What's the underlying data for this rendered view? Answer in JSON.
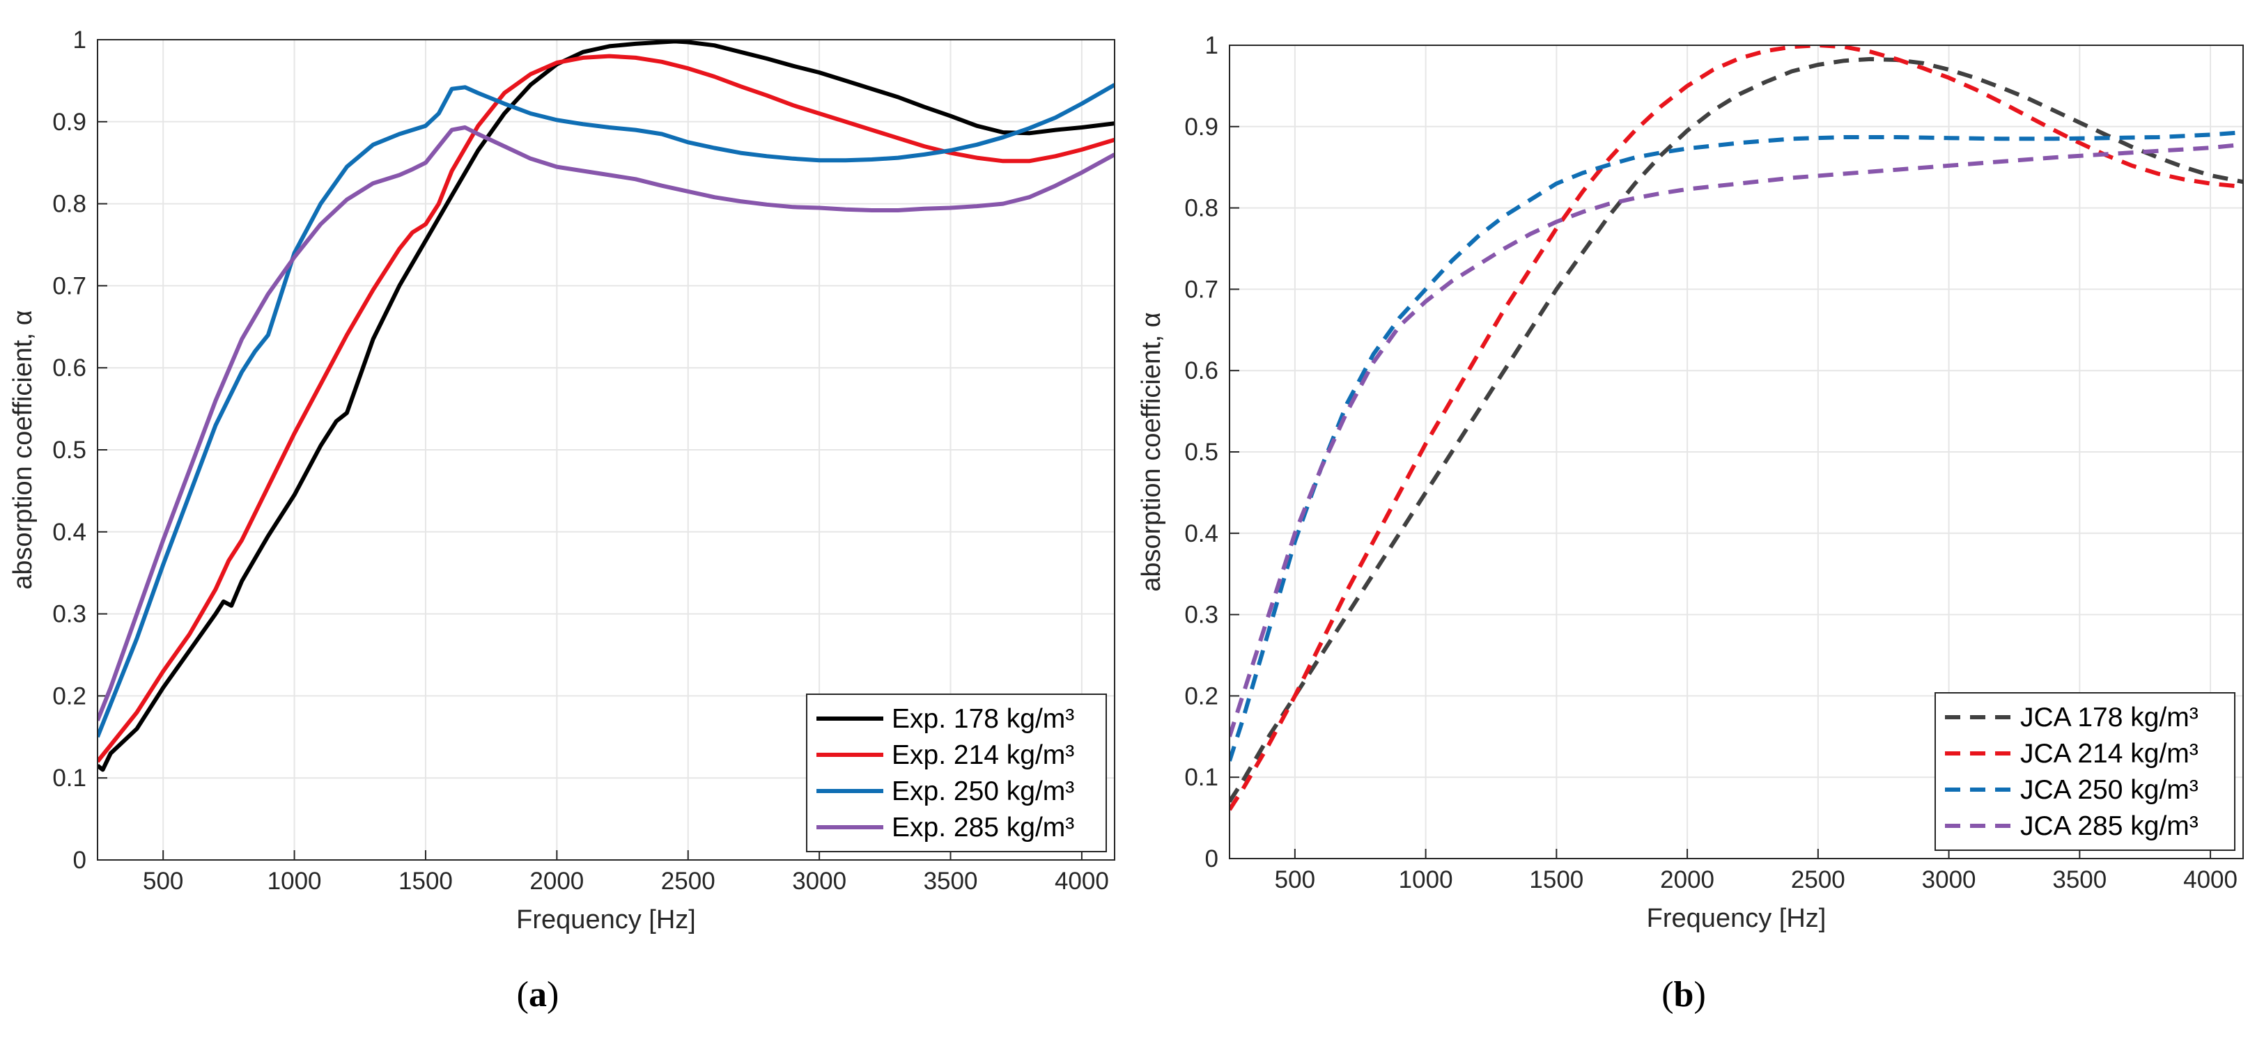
{
  "chart_data": [
    {
      "panel": "a",
      "caption": "(a)",
      "type": "line",
      "xlabel": "Frequency [Hz]",
      "ylabel": "absorption coefficient, α",
      "xlim": [
        250,
        4125
      ],
      "ylim": [
        0,
        1
      ],
      "xticks": [
        "500",
        "1000",
        "1500",
        "2000",
        "2500",
        "3000",
        "3500",
        "4000"
      ],
      "yticks": [
        "0",
        "0.1",
        "0.2",
        "0.3",
        "0.4",
        "0.5",
        "0.6",
        "0.7",
        "0.8",
        "0.9",
        "1"
      ],
      "grid": true,
      "legend": "bottom-right",
      "series": [
        {
          "name": "Exp. 178 kg/m³",
          "color": "#000000",
          "dash": "solid",
          "x": [
            250,
            270,
            300,
            400,
            500,
            600,
            700,
            730,
            760,
            800,
            900,
            1000,
            1100,
            1160,
            1200,
            1250,
            1300,
            1400,
            1500,
            1600,
            1700,
            1800,
            1900,
            2000,
            2100,
            2200,
            2300,
            2400,
            2450,
            2500,
            2600,
            2700,
            2800,
            2900,
            3000,
            3100,
            3200,
            3300,
            3400,
            3500,
            3600,
            3700,
            3800,
            3900,
            4000,
            4125
          ],
          "y": [
            0.115,
            0.11,
            0.13,
            0.16,
            0.21,
            0.255,
            0.3,
            0.315,
            0.31,
            0.34,
            0.395,
            0.445,
            0.505,
            0.535,
            0.545,
            0.59,
            0.635,
            0.7,
            0.755,
            0.81,
            0.865,
            0.91,
            0.945,
            0.97,
            0.985,
            0.992,
            0.995,
            0.997,
            0.998,
            0.997,
            0.993,
            0.985,
            0.977,
            0.968,
            0.96,
            0.95,
            0.94,
            0.93,
            0.918,
            0.907,
            0.895,
            0.887,
            0.886,
            0.89,
            0.893,
            0.898
          ]
        },
        {
          "name": "Exp. 214 kg/m³",
          "color": "#e8141c",
          "dash": "solid",
          "x": [
            250,
            300,
            400,
            500,
            600,
            700,
            750,
            800,
            900,
            1000,
            1100,
            1200,
            1300,
            1400,
            1450,
            1500,
            1550,
            1600,
            1700,
            1800,
            1900,
            2000,
            2100,
            2200,
            2300,
            2400,
            2500,
            2600,
            2700,
            2800,
            2900,
            3000,
            3100,
            3200,
            3300,
            3400,
            3500,
            3600,
            3700,
            3800,
            3900,
            4000,
            4125
          ],
          "y": [
            0.12,
            0.14,
            0.18,
            0.23,
            0.275,
            0.33,
            0.365,
            0.39,
            0.455,
            0.52,
            0.58,
            0.64,
            0.695,
            0.745,
            0.765,
            0.775,
            0.8,
            0.84,
            0.895,
            0.935,
            0.958,
            0.972,
            0.978,
            0.98,
            0.978,
            0.973,
            0.965,
            0.955,
            0.943,
            0.932,
            0.92,
            0.91,
            0.9,
            0.89,
            0.88,
            0.87,
            0.862,
            0.856,
            0.852,
            0.852,
            0.858,
            0.866,
            0.878
          ]
        },
        {
          "name": "Exp. 250  kg/m³",
          "color": "#0f6eb4",
          "dash": "solid",
          "x": [
            250,
            300,
            400,
            500,
            600,
            700,
            800,
            850,
            900,
            1000,
            1100,
            1200,
            1300,
            1400,
            1500,
            1550,
            1600,
            1650,
            1700,
            1800,
            1900,
            2000,
            2100,
            2200,
            2300,
            2400,
            2500,
            2600,
            2700,
            2800,
            2900,
            3000,
            3100,
            3200,
            3300,
            3400,
            3500,
            3600,
            3700,
            3800,
            3900,
            4000,
            4125
          ],
          "y": [
            0.15,
            0.19,
            0.27,
            0.36,
            0.445,
            0.53,
            0.595,
            0.62,
            0.64,
            0.74,
            0.8,
            0.845,
            0.872,
            0.885,
            0.895,
            0.91,
            0.94,
            0.942,
            0.935,
            0.922,
            0.91,
            0.902,
            0.897,
            0.893,
            0.89,
            0.885,
            0.875,
            0.868,
            0.862,
            0.858,
            0.855,
            0.853,
            0.853,
            0.854,
            0.856,
            0.86,
            0.865,
            0.872,
            0.881,
            0.892,
            0.905,
            0.922,
            0.945
          ]
        },
        {
          "name": "Exp. 285  kg/m³",
          "color": "#8756ab",
          "dash": "solid",
          "x": [
            250,
            300,
            400,
            500,
            600,
            700,
            800,
            900,
            1000,
            1100,
            1200,
            1300,
            1400,
            1450,
            1500,
            1550,
            1600,
            1650,
            1700,
            1800,
            1900,
            2000,
            2100,
            2200,
            2300,
            2400,
            2500,
            2600,
            2700,
            2800,
            2900,
            3000,
            3100,
            3200,
            3300,
            3400,
            3500,
            3600,
            3700,
            3800,
            3900,
            4000,
            4125
          ],
          "y": [
            0.17,
            0.21,
            0.3,
            0.39,
            0.475,
            0.56,
            0.635,
            0.69,
            0.735,
            0.775,
            0.805,
            0.825,
            0.835,
            0.842,
            0.85,
            0.87,
            0.89,
            0.893,
            0.885,
            0.87,
            0.855,
            0.845,
            0.84,
            0.835,
            0.83,
            0.822,
            0.815,
            0.808,
            0.803,
            0.799,
            0.796,
            0.795,
            0.793,
            0.792,
            0.792,
            0.794,
            0.795,
            0.797,
            0.8,
            0.808,
            0.822,
            0.838,
            0.86
          ]
        }
      ]
    },
    {
      "panel": "b",
      "caption": "(b)",
      "type": "line",
      "xlabel": "Frequency [Hz]",
      "ylabel": "absorption coefficient, α",
      "xlim": [
        250,
        4125
      ],
      "ylim": [
        0,
        1
      ],
      "xticks": [
        "500",
        "1000",
        "1500",
        "2000",
        "2500",
        "3000",
        "3500",
        "4000"
      ],
      "yticks": [
        "0",
        "0.1",
        "0.2",
        "0.3",
        "0.4",
        "0.5",
        "0.6",
        "0.7",
        "0.8",
        "0.9",
        "1"
      ],
      "grid": true,
      "legend": "bottom-right",
      "series": [
        {
          "name": "JCA 178 kg/m³",
          "color": "#404040",
          "dash": "dashed",
          "x": [
            250,
            300,
            400,
            500,
            600,
            700,
            800,
            900,
            1000,
            1100,
            1200,
            1300,
            1400,
            1500,
            1600,
            1700,
            1800,
            1900,
            2000,
            2100,
            2200,
            2300,
            2400,
            2500,
            2600,
            2700,
            2800,
            2900,
            3000,
            3100,
            3200,
            3300,
            3400,
            3500,
            3600,
            3700,
            3800,
            3900,
            4000,
            4125
          ],
          "y": [
            0.07,
            0.095,
            0.15,
            0.2,
            0.25,
            0.3,
            0.35,
            0.4,
            0.45,
            0.5,
            0.55,
            0.6,
            0.65,
            0.7,
            0.745,
            0.79,
            0.83,
            0.865,
            0.895,
            0.92,
            0.94,
            0.955,
            0.968,
            0.976,
            0.981,
            0.983,
            0.982,
            0.978,
            0.97,
            0.96,
            0.948,
            0.935,
            0.92,
            0.905,
            0.89,
            0.875,
            0.862,
            0.85,
            0.84,
            0.832
          ]
        },
        {
          "name": "JCA 214 kg/m³",
          "color": "#e8141c",
          "dash": "dashed",
          "x": [
            250,
            300,
            400,
            500,
            600,
            700,
            800,
            900,
            1000,
            1100,
            1200,
            1300,
            1400,
            1500,
            1600,
            1700,
            1800,
            1900,
            2000,
            2100,
            2200,
            2300,
            2400,
            2500,
            2600,
            2700,
            2800,
            2900,
            3000,
            3100,
            3200,
            3300,
            3400,
            3500,
            3600,
            3700,
            3800,
            3900,
            4000,
            4125
          ],
          "y": [
            0.06,
            0.085,
            0.14,
            0.2,
            0.265,
            0.33,
            0.39,
            0.45,
            0.51,
            0.565,
            0.62,
            0.675,
            0.725,
            0.775,
            0.82,
            0.86,
            0.895,
            0.925,
            0.95,
            0.97,
            0.984,
            0.993,
            0.998,
            1.0,
            0.998,
            0.992,
            0.983,
            0.972,
            0.96,
            0.946,
            0.93,
            0.913,
            0.896,
            0.88,
            0.865,
            0.852,
            0.842,
            0.835,
            0.83,
            0.826
          ]
        },
        {
          "name": "JCA 250 kg/m³",
          "color": "#0f6eb4",
          "dash": "dashed",
          "x": [
            250,
            300,
            400,
            500,
            600,
            700,
            800,
            900,
            1000,
            1100,
            1200,
            1300,
            1400,
            1500,
            1600,
            1700,
            1800,
            1900,
            2000,
            2200,
            2400,
            2600,
            2800,
            3000,
            3200,
            3400,
            3600,
            3800,
            4000,
            4125
          ],
          "y": [
            0.12,
            0.17,
            0.28,
            0.39,
            0.48,
            0.56,
            0.62,
            0.665,
            0.7,
            0.735,
            0.765,
            0.79,
            0.81,
            0.83,
            0.843,
            0.853,
            0.862,
            0.868,
            0.873,
            0.88,
            0.885,
            0.887,
            0.887,
            0.886,
            0.885,
            0.885,
            0.886,
            0.887,
            0.89,
            0.893
          ]
        },
        {
          "name": "JCA 285 kg/m³",
          "color": "#8756ab",
          "dash": "dashed",
          "x": [
            250,
            300,
            400,
            500,
            600,
            700,
            800,
            900,
            1000,
            1100,
            1200,
            1300,
            1400,
            1500,
            1600,
            1700,
            1800,
            1900,
            2000,
            2200,
            2400,
            2600,
            2800,
            3000,
            3200,
            3400,
            3600,
            3800,
            4000,
            4125
          ],
          "y": [
            0.15,
            0.2,
            0.3,
            0.4,
            0.48,
            0.55,
            0.61,
            0.655,
            0.685,
            0.71,
            0.73,
            0.75,
            0.768,
            0.783,
            0.795,
            0.805,
            0.812,
            0.818,
            0.823,
            0.83,
            0.837,
            0.842,
            0.847,
            0.852,
            0.857,
            0.862,
            0.866,
            0.87,
            0.874,
            0.878
          ]
        }
      ]
    }
  ]
}
